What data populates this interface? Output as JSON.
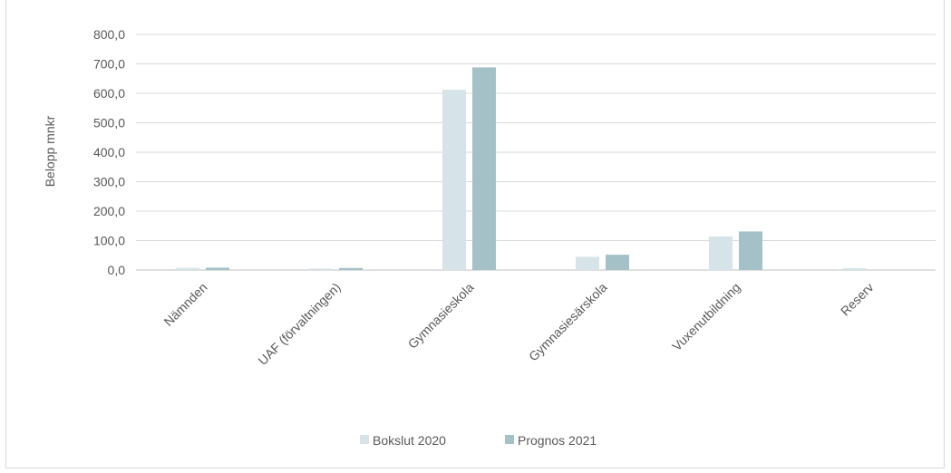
{
  "chart_data": {
    "type": "bar",
    "title": "",
    "xlabel": "",
    "ylabel": "Belopp mnkr",
    "ylim": [
      0,
      800
    ],
    "yticks": [
      "0,0",
      "100,0",
      "200,0",
      "300,0",
      "400,0",
      "500,0",
      "600,0",
      "700,0",
      "800,0"
    ],
    "categories": [
      "Nämnden",
      "UAF (förvaltningen)",
      "Gymnasieskola",
      "Gymnasiesärskola",
      "Vuxenutbildning",
      "Reserv"
    ],
    "series": [
      {
        "name": "Bokslut 2020",
        "values": [
          7,
          5,
          612,
          45,
          114,
          6
        ],
        "color": "#d6e3e8"
      },
      {
        "name": "Prognos 2021",
        "values": [
          8,
          7,
          688,
          52,
          131,
          0
        ],
        "color": "#a3c1c7"
      }
    ],
    "grid": true,
    "legend": "bottom"
  }
}
